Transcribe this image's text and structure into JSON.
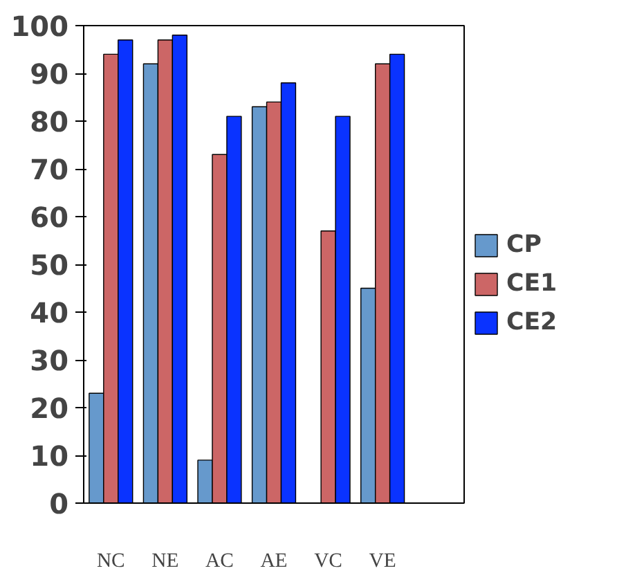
{
  "chart_data": {
    "type": "bar",
    "categories": [
      "NC",
      "NE",
      "AC",
      "AE",
      "VC",
      "VE",
      null
    ],
    "series": [
      {
        "name": "CP",
        "color": "#6699cc",
        "values": [
          23,
          92,
          9,
          83,
          0,
          45,
          null
        ]
      },
      {
        "name": "CE1",
        "color": "#cc6666",
        "values": [
          94,
          97,
          73,
          84,
          57,
          92,
          null
        ]
      },
      {
        "name": "CE2",
        "color": "#0a33ff",
        "values": [
          97,
          98,
          81,
          88,
          81,
          94,
          null
        ]
      }
    ],
    "ylim": [
      0,
      100
    ],
    "yticks": [
      0,
      10,
      20,
      30,
      40,
      50,
      60,
      70,
      80,
      90,
      100
    ],
    "grid": false,
    "legend": "right"
  }
}
